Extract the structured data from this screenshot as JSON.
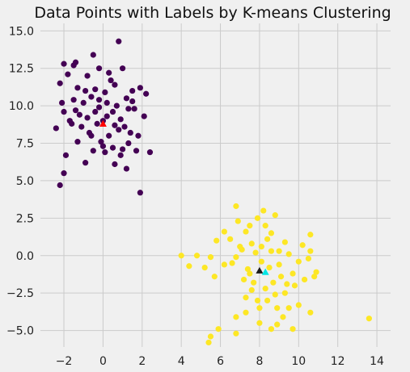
{
  "chart_data": {
    "type": "scatter",
    "title": "Data Points with Labels by K-means Clustering",
    "xlabel": "",
    "ylabel": "",
    "xlim": [
      -3.2,
      14.7
    ],
    "ylim": [
      -6.1,
      15.5
    ],
    "xticks": [
      -2,
      0,
      2,
      4,
      6,
      8,
      10,
      12,
      14
    ],
    "yticks": [
      -5.0,
      -2.5,
      0.0,
      2.5,
      5.0,
      7.5,
      10.0,
      12.5,
      15.0
    ],
    "xtick_labels": [
      "−2",
      "0",
      "2",
      "4",
      "6",
      "8",
      "10",
      "12",
      "14"
    ],
    "ytick_labels": [
      "−5.0",
      "−2.5",
      "0.0",
      "2.5",
      "5.0",
      "7.5",
      "10.0",
      "12.5",
      "15.0"
    ],
    "grid": true,
    "colors": {
      "background": "#f0f0f0",
      "grid": "#cbcbcb",
      "cluster_0": "#440154",
      "cluster_1": "#fde725"
    },
    "series": [
      {
        "color": "#440154",
        "points": [
          [
            -2.0,
            12.8
          ],
          [
            -1.5,
            12.7
          ],
          [
            -1.4,
            12.9
          ],
          [
            -1.8,
            12.1
          ],
          [
            -2.2,
            11.5
          ],
          [
            -2.1,
            10.2
          ],
          [
            -2.4,
            8.5
          ],
          [
            -2.0,
            9.6
          ],
          [
            -1.9,
            6.7
          ],
          [
            -2.0,
            5.5
          ],
          [
            -2.2,
            4.7
          ],
          [
            -1.3,
            11.2
          ],
          [
            -0.8,
            12.0
          ],
          [
            -0.5,
            13.4
          ],
          [
            -0.2,
            12.5
          ],
          [
            0.3,
            12.2
          ],
          [
            0.8,
            14.3
          ],
          [
            0.6,
            11.4
          ],
          [
            1.0,
            12.5
          ],
          [
            1.5,
            11.0
          ],
          [
            1.9,
            11.2
          ],
          [
            2.2,
            10.8
          ],
          [
            2.1,
            9.3
          ],
          [
            1.2,
            10.5
          ],
          [
            1.6,
            9.8
          ],
          [
            1.8,
            8.0
          ],
          [
            2.4,
            6.9
          ],
          [
            1.7,
            7.0
          ],
          [
            1.2,
            5.8
          ],
          [
            0.6,
            6.1
          ],
          [
            0.1,
            6.9
          ],
          [
            -0.5,
            7.0
          ],
          [
            -0.9,
            6.2
          ],
          [
            -1.3,
            7.6
          ],
          [
            -1.6,
            8.8
          ],
          [
            -1.1,
            8.6
          ],
          [
            -0.7,
            8.2
          ],
          [
            -0.3,
            8.8
          ],
          [
            0.0,
            9.0
          ],
          [
            0.2,
            9.3
          ],
          [
            0.5,
            9.6
          ],
          [
            0.7,
            10.0
          ],
          [
            0.9,
            9.1
          ],
          [
            1.1,
            8.6
          ],
          [
            1.3,
            9.8
          ],
          [
            -0.2,
            10.4
          ],
          [
            -0.6,
            10.6
          ],
          [
            -1.0,
            10.2
          ],
          [
            -1.4,
            9.7
          ],
          [
            -0.4,
            11.1
          ],
          [
            0.1,
            10.9
          ],
          [
            0.4,
            11.7
          ],
          [
            -0.9,
            11.0
          ],
          [
            1.4,
            8.2
          ],
          [
            0.8,
            8.4
          ],
          [
            -0.1,
            7.6
          ],
          [
            0.5,
            7.2
          ],
          [
            1.0,
            7.1
          ],
          [
            -1.2,
            9.4
          ],
          [
            -0.8,
            9.2
          ],
          [
            0.3,
            8.0
          ],
          [
            0.6,
            8.7
          ],
          [
            -0.4,
            9.6
          ],
          [
            0.2,
            10.2
          ],
          [
            -1.7,
            9.0
          ],
          [
            -1.5,
            10.4
          ],
          [
            -0.6,
            8.0
          ],
          [
            0.0,
            7.3
          ],
          [
            0.9,
            6.7
          ],
          [
            1.3,
            7.5
          ],
          [
            1.5,
            10.3
          ],
          [
            -0.2,
            9.9
          ],
          [
            1.9,
            4.2
          ]
        ]
      },
      {
        "color": "#fde725",
        "points": [
          [
            4.0,
            0.0
          ],
          [
            4.4,
            -0.7
          ],
          [
            4.8,
            0.0
          ],
          [
            5.2,
            -0.8
          ],
          [
            5.5,
            -0.1
          ],
          [
            5.7,
            -1.4
          ],
          [
            5.8,
            1.0
          ],
          [
            5.9,
            -4.9
          ],
          [
            5.5,
            -5.4
          ],
          [
            5.4,
            -5.8
          ],
          [
            6.2,
            1.6
          ],
          [
            6.5,
            1.1
          ],
          [
            6.2,
            -0.6
          ],
          [
            6.8,
            -0.1
          ],
          [
            6.9,
            2.3
          ],
          [
            6.8,
            3.3
          ],
          [
            6.8,
            -4.1
          ],
          [
            6.8,
            -5.2
          ],
          [
            7.1,
            0.4
          ],
          [
            7.3,
            1.6
          ],
          [
            7.5,
            2.0
          ],
          [
            7.6,
            0.8
          ],
          [
            7.8,
            0.2
          ],
          [
            7.5,
            -1.2
          ],
          [
            7.2,
            -1.6
          ],
          [
            7.6,
            -2.3
          ],
          [
            7.9,
            -3.0
          ],
          [
            7.3,
            -3.8
          ],
          [
            8.0,
            -4.5
          ],
          [
            8.2,
            3.0
          ],
          [
            7.9,
            2.5
          ],
          [
            8.3,
            2.0
          ],
          [
            8.1,
            0.6
          ],
          [
            8.4,
            1.1
          ],
          [
            8.6,
            1.5
          ],
          [
            8.8,
            2.7
          ],
          [
            8.6,
            0.3
          ],
          [
            8.5,
            -0.8
          ],
          [
            8.7,
            -1.8
          ],
          [
            8.4,
            -3.0
          ],
          [
            8.6,
            -4.9
          ],
          [
            8.9,
            -4.6
          ],
          [
            9.2,
            -4.1
          ],
          [
            8.9,
            -3.5
          ],
          [
            9.3,
            -2.5
          ],
          [
            9.1,
            -1.4
          ],
          [
            9.0,
            -0.6
          ],
          [
            9.3,
            0.9
          ],
          [
            9.5,
            0.1
          ],
          [
            9.7,
            -1.2
          ],
          [
            9.8,
            -2.0
          ],
          [
            10.0,
            -0.4
          ],
          [
            10.3,
            -1.6
          ],
          [
            10.5,
            -0.2
          ],
          [
            10.6,
            1.4
          ],
          [
            10.8,
            -1.4
          ],
          [
            10.9,
            -1.1
          ],
          [
            10.0,
            -3.3
          ],
          [
            10.6,
            -3.8
          ],
          [
            9.5,
            -3.5
          ],
          [
            9.7,
            -4.9
          ],
          [
            13.6,
            -4.2
          ],
          [
            7.0,
            0.6
          ],
          [
            6.6,
            -0.5
          ],
          [
            7.4,
            -0.9
          ],
          [
            8.3,
            -2.2
          ],
          [
            8.8,
            -2.6
          ],
          [
            9.4,
            -1.9
          ],
          [
            8.1,
            -0.4
          ],
          [
            7.7,
            -1.8
          ],
          [
            9.0,
            0.3
          ],
          [
            10.2,
            0.7
          ],
          [
            8.0,
            -3.5
          ],
          [
            7.3,
            -2.8
          ],
          [
            10.6,
            0.3
          ]
        ]
      }
    ],
    "centroids": [
      {
        "x": 0.0,
        "y": 8.8,
        "color": "#ff0000"
      },
      {
        "x": 8.0,
        "y": -1.0,
        "color": "#1a1a1a"
      },
      {
        "x": 8.3,
        "y": -1.1,
        "color": "#00e5e5"
      }
    ]
  }
}
